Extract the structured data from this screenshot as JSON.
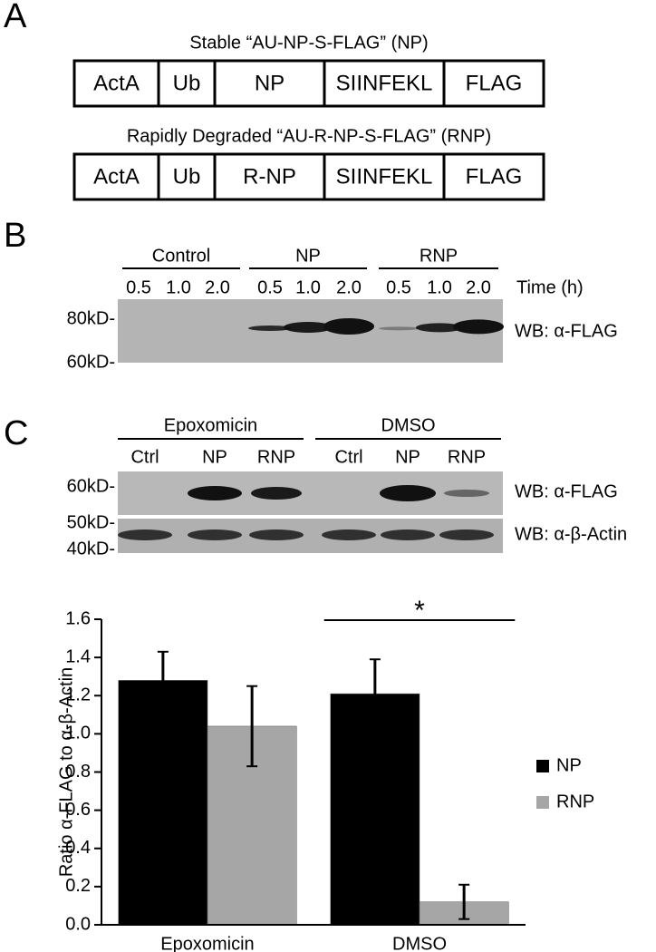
{
  "panel_a": {
    "label": "A",
    "constructs": [
      {
        "title": "Stable “AU-NP-S-FLAG” (NP)",
        "segments": [
          "ActA",
          "Ub",
          "NP",
          "SIINFEKL",
          "FLAG"
        ]
      },
      {
        "title": "Rapidly Degraded “AU-R-NP-S-FLAG” (RNP)",
        "segments": [
          "ActA",
          "Ub",
          "R-NP",
          "SIINFEKL",
          "FLAG"
        ]
      }
    ]
  },
  "panel_b": {
    "label": "B",
    "groups": [
      "Control",
      "NP",
      "RNP"
    ],
    "times": [
      "0.5",
      "1.0",
      "2.0"
    ],
    "time_label": "Time (h)",
    "markers": [
      "80kD-",
      "60kD-"
    ],
    "blot_label": "WB: α-FLAG"
  },
  "panel_c": {
    "label": "C",
    "groups": [
      "Epoxomicin",
      "DMSO"
    ],
    "lanes": [
      "Ctrl",
      "NP",
      "RNP"
    ],
    "markers_top": [
      "60kD-"
    ],
    "markers_bottom": [
      "50kD-",
      "40kD-"
    ],
    "blot_labels": [
      "WB: α-FLAG",
      "WB: α-β-Actin"
    ]
  },
  "chart_data": {
    "type": "bar",
    "ylabel": "Ratio α-FLAG to α-β-Actin",
    "categories": [
      "Epoxomicin",
      "DMSO"
    ],
    "series": [
      {
        "name": "NP",
        "color": "#000000",
        "values": [
          1.28,
          1.21
        ],
        "error": [
          0.15,
          0.18
        ]
      },
      {
        "name": "RNP",
        "color": "#a6a6a6",
        "values": [
          1.04,
          0.12
        ],
        "error": [
          0.21,
          0.09
        ]
      }
    ],
    "ylim": [
      0,
      1.6
    ],
    "yticks": [
      {
        "value": 0,
        "label": "0.0"
      },
      0.2,
      0.4,
      0.6,
      0.8,
      {
        "value": 1,
        "label": "1.0"
      },
      1.2,
      1.4,
      1.6
    ],
    "annotation": "*",
    "legend": "right"
  }
}
